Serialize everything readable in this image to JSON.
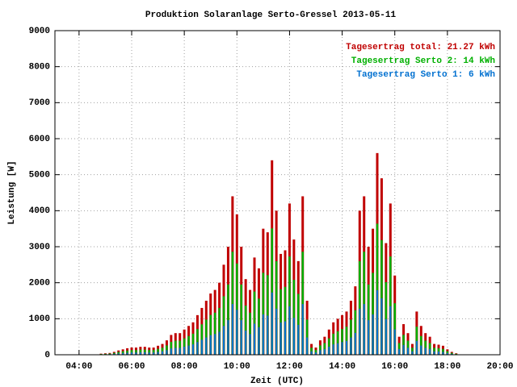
{
  "chart_data": {
    "type": "bar",
    "title": "Produktion Solaranlage Serto-Gressel 2013-05-11",
    "x_label": "Zeit (UTC)",
    "y_label": "Leistung [W]",
    "annotations": [
      {
        "text": "Tagesertrag total: 21.27 kWh",
        "color": "#c00000"
      },
      {
        "text": "Tagesertrag Serto 2: 14 kWh",
        "color": "#00b000"
      },
      {
        "text": "Tagesertrag Serto 1: 6 kWh",
        "color": "#0070d0"
      }
    ],
    "xlim": [
      185,
      1200
    ],
    "xticks": [
      {
        "value": 240,
        "label": "04:00"
      },
      {
        "value": 360,
        "label": "06:00"
      },
      {
        "value": 480,
        "label": "08:00"
      },
      {
        "value": 600,
        "label": "10:00"
      },
      {
        "value": 720,
        "label": "12:00"
      },
      {
        "value": 840,
        "label": "14:00"
      },
      {
        "value": 960,
        "label": "16:00"
      },
      {
        "value": 1080,
        "label": "18:00"
      },
      {
        "value": 1200,
        "label": "20:00"
      }
    ],
    "ylim": [
      0,
      9000
    ],
    "yticks": [
      0,
      1000,
      2000,
      3000,
      4000,
      5000,
      6000,
      7000,
      8000,
      9000
    ],
    "grid": true,
    "x": [
      290,
      300,
      310,
      320,
      330,
      340,
      350,
      360,
      370,
      380,
      390,
      400,
      410,
      420,
      430,
      440,
      450,
      460,
      470,
      480,
      490,
      500,
      510,
      520,
      530,
      540,
      550,
      560,
      570,
      580,
      590,
      600,
      610,
      620,
      630,
      640,
      650,
      660,
      670,
      680,
      690,
      700,
      710,
      720,
      730,
      740,
      750,
      760,
      770,
      780,
      790,
      800,
      810,
      820,
      830,
      840,
      850,
      860,
      870,
      880,
      890,
      900,
      910,
      920,
      930,
      940,
      950,
      960,
      970,
      980,
      990,
      1000,
      1010,
      1020,
      1030,
      1040,
      1050,
      1060,
      1070,
      1080,
      1090,
      1100
    ],
    "series": [
      {
        "name": "total",
        "color": "#c00000",
        "values": [
          30,
          40,
          50,
          80,
          120,
          150,
          180,
          200,
          200,
          220,
          220,
          200,
          200,
          250,
          300,
          400,
          550,
          600,
          600,
          700,
          800,
          900,
          1100,
          1300,
          1500,
          1700,
          1800,
          2000,
          2500,
          3000,
          4400,
          3900,
          3000,
          2100,
          1800,
          2700,
          2400,
          3500,
          3400,
          5400,
          4000,
          2800,
          2900,
          4200,
          3200,
          2600,
          4400,
          1500,
          300,
          200,
          400,
          500,
          700,
          900,
          1000,
          1100,
          1200,
          1500,
          1900,
          4000,
          4400,
          3000,
          3500,
          5600,
          4900,
          3100,
          4200,
          2200,
          500,
          850,
          600,
          300,
          1200,
          800,
          600,
          500,
          300,
          280,
          250,
          150,
          80,
          40
        ]
      },
      {
        "name": "Serto 2",
        "color": "#00b000",
        "values": [
          20,
          26,
          33,
          52,
          78,
          98,
          117,
          130,
          130,
          143,
          143,
          130,
          130,
          163,
          195,
          260,
          358,
          390,
          390,
          455,
          520,
          585,
          715,
          845,
          975,
          1105,
          1170,
          1300,
          1625,
          1950,
          2860,
          2535,
          1950,
          1365,
          1170,
          1755,
          1560,
          2275,
          2210,
          3510,
          2600,
          1820,
          1885,
          2730,
          2080,
          1690,
          2860,
          975,
          195,
          130,
          260,
          325,
          455,
          585,
          650,
          715,
          780,
          975,
          1235,
          2600,
          2860,
          1950,
          2275,
          3640,
          3185,
          2015,
          2730,
          1430,
          325,
          553,
          390,
          195,
          780,
          520,
          390,
          325,
          195,
          182,
          163,
          98,
          52,
          26
        ]
      },
      {
        "name": "Serto 1",
        "color": "#0070d0",
        "values": [
          10,
          13,
          16,
          26,
          38,
          48,
          58,
          64,
          64,
          70,
          70,
          64,
          64,
          80,
          96,
          128,
          176,
          192,
          192,
          224,
          256,
          288,
          352,
          416,
          480,
          544,
          576,
          640,
          800,
          960,
          1408,
          1248,
          960,
          672,
          576,
          864,
          768,
          1120,
          1088,
          1728,
          1280,
          896,
          928,
          1344,
          1024,
          832,
          1408,
          480,
          96,
          64,
          128,
          160,
          224,
          288,
          320,
          352,
          384,
          480,
          608,
          1280,
          1408,
          960,
          1120,
          1792,
          1568,
          992,
          1344,
          704,
          160,
          272,
          192,
          96,
          384,
          256,
          192,
          160,
          96,
          90,
          80,
          48,
          26,
          13
        ]
      }
    ]
  }
}
